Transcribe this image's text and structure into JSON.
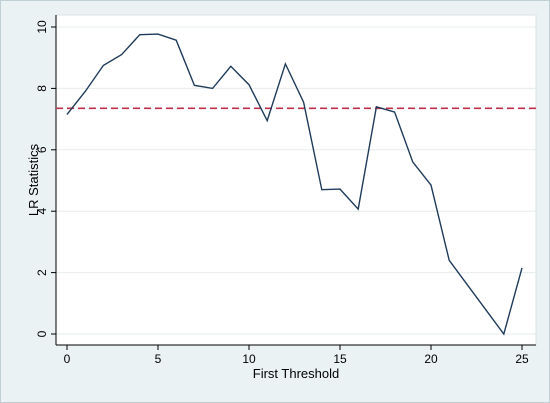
{
  "chart_data": {
    "type": "line",
    "title": "",
    "xlabel": "First Threshold",
    "ylabel": "LR Statistics",
    "xlim": [
      0,
      25
    ],
    "ylim": [
      0,
      10
    ],
    "xticks": [
      0,
      5,
      10,
      15,
      20,
      25
    ],
    "yticks": [
      0,
      2,
      4,
      6,
      8,
      10
    ],
    "grid": "horizontal",
    "series": [
      {
        "color": "#1f3b5a",
        "x": [
          0,
          1,
          2,
          3,
          4,
          5,
          6,
          7,
          8,
          9,
          10,
          11,
          12,
          13,
          14,
          15,
          16,
          17,
          18,
          19,
          20,
          21,
          24,
          25
        ],
        "y": [
          7.15,
          7.9,
          8.75,
          9.1,
          9.75,
          9.77,
          9.57,
          8.1,
          8.0,
          8.72,
          8.12,
          6.95,
          8.8,
          7.55,
          4.7,
          4.72,
          4.07,
          7.4,
          7.23,
          5.6,
          4.85,
          2.4,
          0.0,
          2.15
        ]
      }
    ],
    "reference_line": {
      "y": 7.35,
      "color": "#c0304a",
      "style": "dashed"
    }
  }
}
